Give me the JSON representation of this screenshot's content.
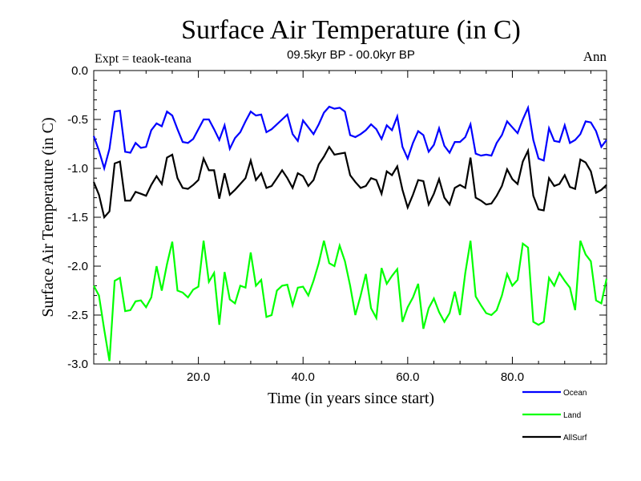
{
  "chart_data": {
    "type": "line",
    "title": "Surface Air Temperature (in C)",
    "subtitle": "09.5kyr BP - 00.0kyr BP",
    "left_note": "Expt = teaok-teana",
    "right_note": "Ann",
    "xlabel": "Time (in years since start)",
    "ylabel": "Surface Air Temperature (in C)",
    "xlim": [
      0,
      98
    ],
    "ylim": [
      -3.0,
      0.0
    ],
    "xticks": [
      20,
      40,
      60,
      80
    ],
    "xtick_labels": [
      "20.0",
      "40.0",
      "60.0",
      "80.0"
    ],
    "yticks": [
      0.0,
      -0.5,
      -1.0,
      -1.5,
      -2.0,
      -2.5,
      -3.0
    ],
    "ytick_labels": [
      "0.0",
      "-0.5",
      "-1.0",
      "-1.5",
      "-2.0",
      "-2.5",
      "-3.0"
    ],
    "legend_position": "bottom-right, below plot",
    "series": [
      {
        "name": "Ocean",
        "color": "#0000ff",
        "x": [
          0,
          1,
          2,
          3,
          4,
          5,
          6,
          7,
          8,
          9,
          10,
          11,
          12,
          13,
          14,
          15,
          16,
          17,
          18,
          19,
          20,
          21,
          22,
          23,
          24,
          25,
          26,
          27,
          28,
          29,
          30,
          31,
          32,
          33,
          34,
          35,
          36,
          37,
          38,
          39,
          40,
          41,
          42,
          43,
          44,
          45,
          46,
          47,
          48,
          49,
          50,
          51,
          52,
          53,
          54,
          55,
          56,
          57,
          58,
          59,
          60,
          61,
          62,
          63,
          64,
          65,
          66,
          67,
          68,
          69,
          70,
          71,
          72,
          73,
          74,
          75,
          76,
          77,
          78,
          79,
          80,
          81,
          82,
          83,
          84,
          85,
          86,
          87,
          88,
          89,
          90,
          91,
          92,
          93,
          94,
          95,
          96,
          97,
          98
        ],
        "values": [
          -0.67,
          -0.82,
          -1.0,
          -0.8,
          -0.42,
          -0.41,
          -0.83,
          -0.84,
          -0.74,
          -0.79,
          -0.78,
          -0.61,
          -0.54,
          -0.57,
          -0.42,
          -0.46,
          -0.6,
          -0.73,
          -0.74,
          -0.7,
          -0.6,
          -0.5,
          -0.5,
          -0.6,
          -0.71,
          -0.56,
          -0.8,
          -0.69,
          -0.63,
          -0.52,
          -0.42,
          -0.46,
          -0.45,
          -0.63,
          -0.6,
          -0.55,
          -0.5,
          -0.45,
          -0.65,
          -0.72,
          -0.51,
          -0.58,
          -0.65,
          -0.55,
          -0.43,
          -0.37,
          -0.39,
          -0.38,
          -0.42,
          -0.66,
          -0.68,
          -0.65,
          -0.61,
          -0.55,
          -0.6,
          -0.7,
          -0.56,
          -0.61,
          -0.47,
          -0.78,
          -0.9,
          -0.74,
          -0.62,
          -0.66,
          -0.83,
          -0.76,
          -0.59,
          -0.77,
          -0.84,
          -0.73,
          -0.73,
          -0.68,
          -0.55,
          -0.85,
          -0.87,
          -0.86,
          -0.87,
          -0.74,
          -0.66,
          -0.52,
          -0.58,
          -0.64,
          -0.5,
          -0.38,
          -0.71,
          -0.9,
          -0.92,
          -0.59,
          -0.72,
          -0.73,
          -0.56,
          -0.74,
          -0.71,
          -0.65,
          -0.52,
          -0.53,
          -0.62,
          -0.78,
          -0.71
        ]
      },
      {
        "name": "Land",
        "color": "#00ff00",
        "x": [
          0,
          1,
          2,
          3,
          4,
          5,
          6,
          7,
          8,
          9,
          10,
          11,
          12,
          13,
          14,
          15,
          16,
          17,
          18,
          19,
          20,
          21,
          22,
          23,
          24,
          25,
          26,
          27,
          28,
          29,
          30,
          31,
          32,
          33,
          34,
          35,
          36,
          37,
          38,
          39,
          40,
          41,
          42,
          43,
          44,
          45,
          46,
          47,
          48,
          49,
          50,
          51,
          52,
          53,
          54,
          55,
          56,
          57,
          58,
          59,
          60,
          61,
          62,
          63,
          64,
          65,
          66,
          67,
          68,
          69,
          70,
          71,
          72,
          73,
          74,
          75,
          76,
          77,
          78,
          79,
          80,
          81,
          82,
          83,
          84,
          85,
          86,
          87,
          88,
          89,
          90,
          91,
          92,
          93,
          94,
          95,
          96,
          97,
          98
        ],
        "values": [
          -2.2,
          -2.3,
          -2.65,
          -2.97,
          -2.15,
          -2.12,
          -2.46,
          -2.45,
          -2.36,
          -2.35,
          -2.42,
          -2.32,
          -2.0,
          -2.25,
          -1.98,
          -1.75,
          -2.25,
          -2.27,
          -2.32,
          -2.24,
          -2.21,
          -1.74,
          -2.16,
          -2.07,
          -2.6,
          -2.06,
          -2.34,
          -2.38,
          -2.2,
          -2.22,
          -1.86,
          -2.2,
          -2.14,
          -2.52,
          -2.5,
          -2.25,
          -2.2,
          -2.19,
          -2.4,
          -2.22,
          -2.21,
          -2.3,
          -2.15,
          -1.97,
          -1.74,
          -1.97,
          -2.0,
          -1.79,
          -1.95,
          -2.2,
          -2.5,
          -2.3,
          -2.08,
          -2.43,
          -2.53,
          -2.02,
          -2.18,
          -2.1,
          -2.03,
          -2.57,
          -2.42,
          -2.32,
          -2.18,
          -2.64,
          -2.43,
          -2.33,
          -2.47,
          -2.57,
          -2.48,
          -2.26,
          -2.5,
          -2.07,
          -1.74,
          -2.31,
          -2.4,
          -2.48,
          -2.5,
          -2.45,
          -2.3,
          -2.08,
          -2.2,
          -2.14,
          -1.77,
          -1.81,
          -2.57,
          -2.6,
          -2.57,
          -2.12,
          -2.2,
          -2.07,
          -2.15,
          -2.22,
          -2.45,
          -1.74,
          -1.88,
          -1.95,
          -2.35,
          -2.38,
          -2.13
        ]
      },
      {
        "name": "AllSurf",
        "color": "#000000",
        "x": [
          0,
          1,
          2,
          3,
          4,
          5,
          6,
          7,
          8,
          9,
          10,
          11,
          12,
          13,
          14,
          15,
          16,
          17,
          18,
          19,
          20,
          21,
          22,
          23,
          24,
          25,
          26,
          27,
          28,
          29,
          30,
          31,
          32,
          33,
          34,
          35,
          36,
          37,
          38,
          39,
          40,
          41,
          42,
          43,
          44,
          45,
          46,
          47,
          48,
          49,
          50,
          51,
          52,
          53,
          54,
          55,
          56,
          57,
          58,
          59,
          60,
          61,
          62,
          63,
          64,
          65,
          66,
          67,
          68,
          69,
          70,
          71,
          72,
          73,
          74,
          75,
          76,
          77,
          78,
          79,
          80,
          81,
          82,
          83,
          84,
          85,
          86,
          87,
          88,
          89,
          90,
          91,
          92,
          93,
          94,
          95,
          96,
          97,
          98
        ],
        "values": [
          -1.14,
          -1.27,
          -1.5,
          -1.44,
          -0.95,
          -0.93,
          -1.33,
          -1.33,
          -1.24,
          -1.26,
          -1.28,
          -1.17,
          -1.08,
          -1.16,
          -0.89,
          -0.86,
          -1.1,
          -1.2,
          -1.21,
          -1.17,
          -1.12,
          -0.9,
          -1.02,
          -1.02,
          -1.31,
          -1.05,
          -1.27,
          -1.22,
          -1.16,
          -1.1,
          -0.92,
          -1.12,
          -1.05,
          -1.2,
          -1.18,
          -1.1,
          -1.02,
          -1.1,
          -1.2,
          -1.05,
          -1.08,
          -1.18,
          -1.12,
          -0.96,
          -0.88,
          -0.78,
          -0.86,
          -0.85,
          -0.84,
          -1.07,
          -1.14,
          -1.2,
          -1.18,
          -1.1,
          -1.12,
          -1.26,
          -1.03,
          -1.07,
          -0.98,
          -1.22,
          -1.4,
          -1.27,
          -1.12,
          -1.13,
          -1.37,
          -1.26,
          -1.11,
          -1.3,
          -1.37,
          -1.2,
          -1.17,
          -1.2,
          -0.89,
          -1.3,
          -1.33,
          -1.37,
          -1.36,
          -1.28,
          -1.18,
          -1.01,
          -1.11,
          -1.16,
          -0.93,
          -0.82,
          -1.28,
          -1.42,
          -1.43,
          -1.1,
          -1.18,
          -1.16,
          -1.07,
          -1.19,
          -1.21,
          -0.91,
          -0.94,
          -1.03,
          -1.25,
          -1.22,
          -1.17
        ]
      }
    ]
  }
}
